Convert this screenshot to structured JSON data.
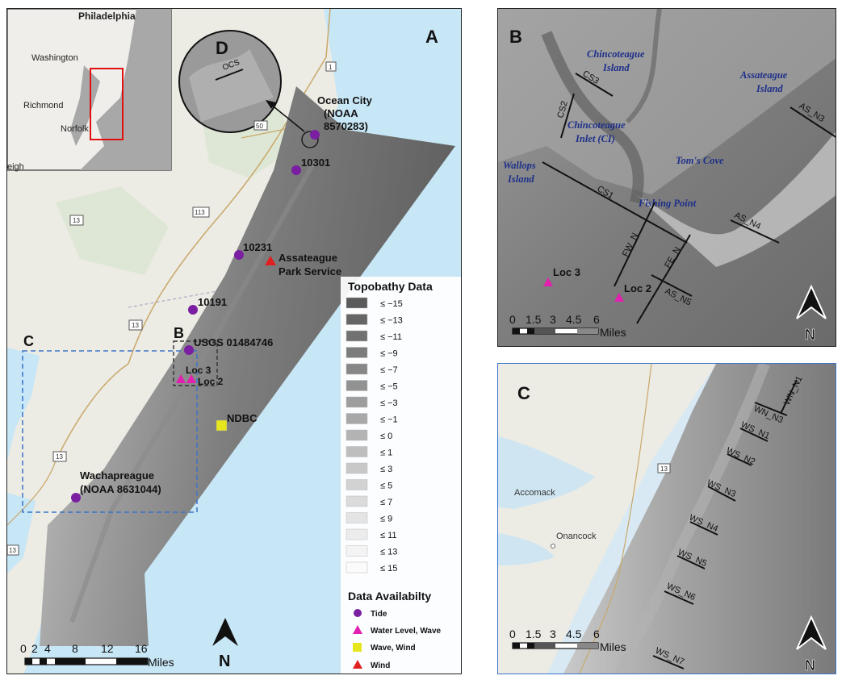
{
  "panelA": {
    "letter": "A",
    "inset": {
      "cities": [
        "Philadelphia",
        "Washington",
        "Richmond",
        "Norfolk",
        "eigh"
      ]
    },
    "detail_letter": "D",
    "detail_line": "OCS",
    "box_b_label": "B",
    "box_c_label": "C",
    "stations": {
      "ocean_city_1": "Ocean City",
      "ocean_city_2": "(NOAA",
      "ocean_city_3": "8570283)",
      "s10301": "10301",
      "s10231": "10231",
      "assateague_1": "Assateague",
      "assateague_2": "Park Service",
      "s10191": "10191",
      "usgs": "USGS 01484746",
      "loc3": "Loc 3",
      "loc2": "Loc 2",
      "ndbc": "NDBC",
      "wach_1": "Wachapreague",
      "wach_2": "(NOAA 8631044)"
    },
    "road_shields": [
      "1",
      "50",
      "113",
      "13",
      "13",
      "13",
      "13"
    ],
    "scale": {
      "ticks": [
        "0",
        "2",
        "4",
        "8",
        "12",
        "16"
      ],
      "unit": "Miles"
    },
    "north": "N",
    "legend": {
      "title": "Topobathy Data",
      "classes": [
        "≤ −15",
        "≤ −13",
        "≤ −11",
        "≤ −9",
        "≤ −7",
        "≤ −5",
        "≤ −3",
        "≤ −1",
        "≤ 0",
        "≤ 1",
        "≤ 3",
        "≤ 5",
        "≤ 7",
        "≤ 9",
        "≤ 11",
        "≤ 13",
        "≤ 15"
      ],
      "class_colors": [
        "#5a5a5a",
        "#666666",
        "#717171",
        "#7c7c7c",
        "#878787",
        "#929292",
        "#9d9d9d",
        "#a8a8a8",
        "#b3b3b3",
        "#bebebe",
        "#c8c8c8",
        "#d2d2d2",
        "#dbdbdb",
        "#e4e4e4",
        "#ececec",
        "#f4f4f4",
        "#fbfbfb"
      ],
      "avail_title": "Data Availabilty",
      "avail": [
        {
          "label": "Tide",
          "color": "#7a1fa2"
        },
        {
          "label": "Water Level, Wave",
          "color": "#e21fae"
        },
        {
          "label": "Wave, Wind",
          "color": "#e6e61f"
        },
        {
          "label": "Wind",
          "color": "#e02020"
        }
      ]
    }
  },
  "panelB": {
    "letter": "B",
    "places": [
      "Chincoteague",
      "Island",
      "Assateague",
      "Island",
      "Chincoteague",
      "Inlet (CI)",
      "Wallops",
      "Island",
      "Tom's Cove",
      "Fishing Point"
    ],
    "lines": [
      "CS3",
      "CS2",
      "AS_N3",
      "CS1",
      "AS_N4",
      "FW_N",
      "FE_N",
      "AS_N5"
    ],
    "locs": [
      "Loc 3",
      "Loc 2"
    ],
    "scale": {
      "ticks": [
        "0",
        "1.5",
        "3",
        "4.5",
        "6"
      ],
      "unit": "Miles"
    },
    "north": "N"
  },
  "panelC": {
    "letter": "C",
    "lines": [
      "WN_N1",
      "WN_N3",
      "WS_N1",
      "WS_N2",
      "WS_N3",
      "WS_N4",
      "WS_N5",
      "WS_N6",
      "WS_N7"
    ],
    "towns": [
      "Accomack",
      "Onancock"
    ],
    "shield": "13",
    "scale": {
      "ticks": [
        "0",
        "1.5",
        "3",
        "4.5",
        "6"
      ],
      "unit": "Miles"
    },
    "north": "N"
  }
}
